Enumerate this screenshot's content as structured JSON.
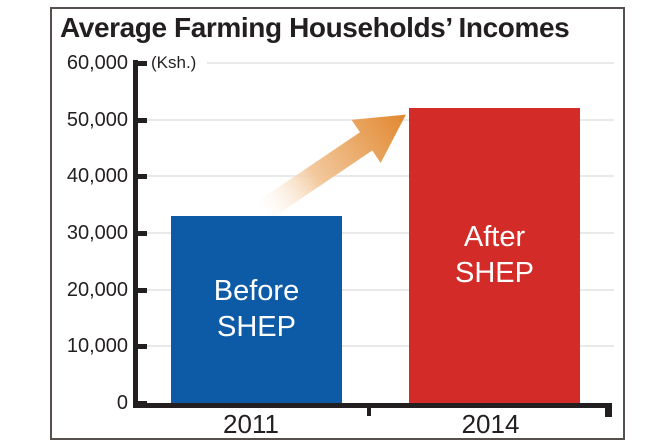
{
  "chart_data": {
    "type": "bar",
    "title": "Average Farming Households’ Incomes",
    "unit_label": "(Ksh.)",
    "categories": [
      "2011",
      "2014"
    ],
    "values": [
      33000,
      52000
    ],
    "bar_labels": [
      "Before\nSHEP",
      "After\nSHEP"
    ],
    "bar_colors": [
      "#0d5aa6",
      "#d32b27"
    ],
    "ylim": [
      0,
      60000
    ],
    "ytick_values": [
      0,
      10000,
      20000,
      30000,
      40000,
      50000,
      60000
    ],
    "ytick_labels": [
      "0",
      "10,000",
      "20,000",
      "30,000",
      "40,000",
      "50,000",
      "60,000"
    ],
    "grid": true,
    "legend_position": "none",
    "annotations": [
      {
        "type": "arrow",
        "meaning": "income growth from 2011 to 2014",
        "color": "#e1862d"
      }
    ]
  },
  "colors": {
    "axis": "#231f20",
    "gridline": "#e9e9e9",
    "frame_border": "#56504e",
    "bar_before": "#0d5aa6",
    "bar_after": "#d32b27",
    "arrow_orange": "#e1862d",
    "background": "#ffffff"
  }
}
